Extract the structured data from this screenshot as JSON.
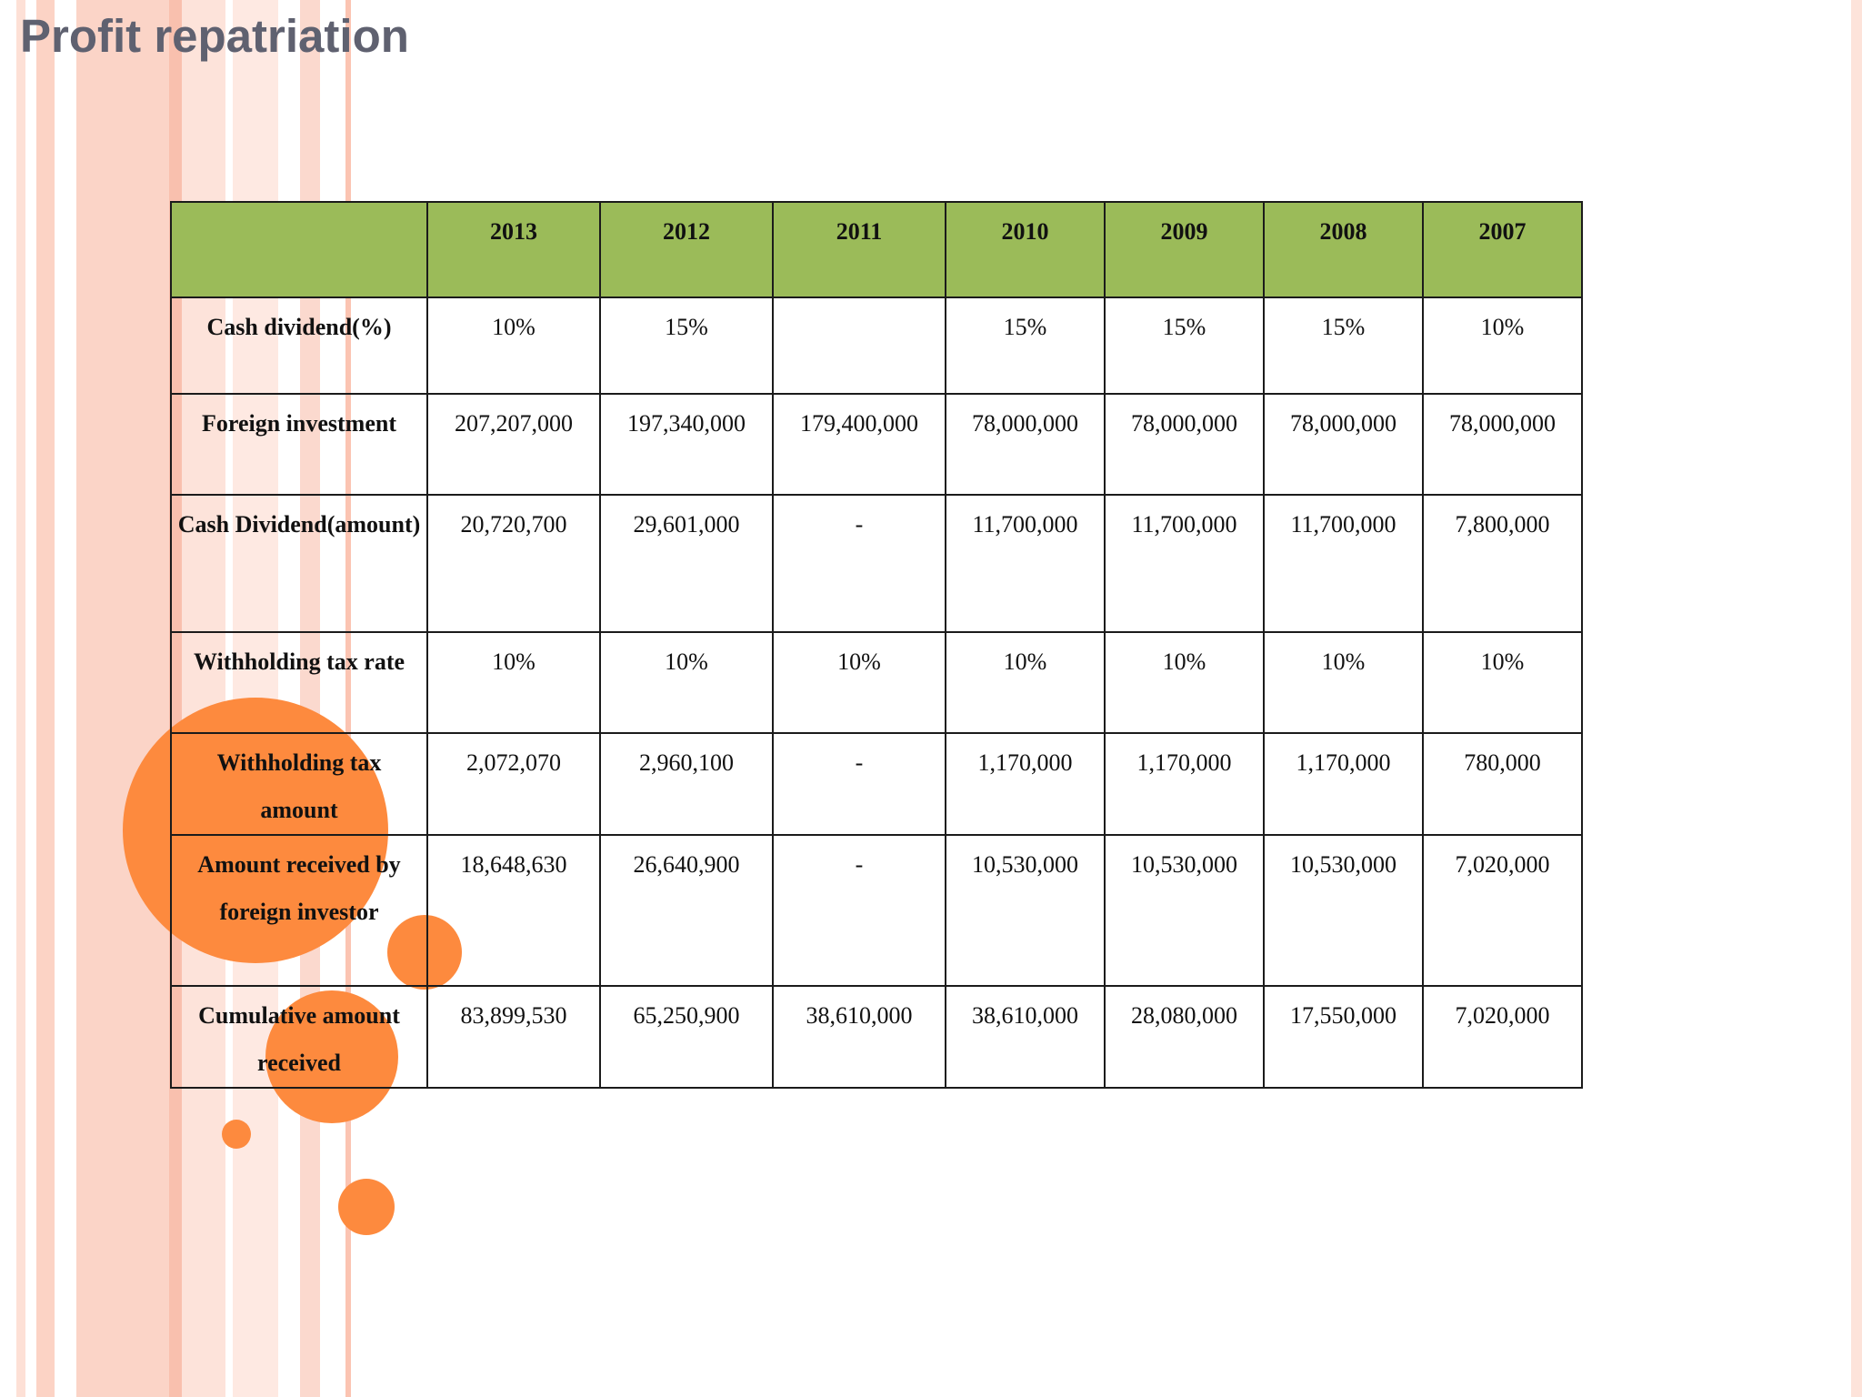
{
  "slide": {
    "title": "Profit repatriation",
    "colors": {
      "accent_orange": "#fd8a3e",
      "header_green": "#9bbb59",
      "title_gray": "#5f6170"
    }
  },
  "table": {
    "corner": "",
    "columns": [
      "2013",
      "2012",
      "2011",
      "2010",
      "2009",
      "2008",
      "2007"
    ],
    "rows": [
      {
        "label": "Cash dividend(%)",
        "values": [
          "10%",
          "15%",
          "",
          "15%",
          "15%",
          "15%",
          "10%"
        ]
      },
      {
        "label": "Foreign investment",
        "values": [
          "207,207,000",
          "197,340,000",
          "179,400,000",
          "78,000,000",
          "78,000,000",
          "78,000,000",
          "78,000,000"
        ]
      },
      {
        "label": "Cash Dividend(amount)",
        "values": [
          "20,720,700",
          "29,601,000",
          "-",
          "11,700,000",
          "11,700,000",
          "11,700,000",
          "7,800,000"
        ]
      },
      {
        "label": "Withholding tax rate",
        "values": [
          "10%",
          "10%",
          "10%",
          "10%",
          "10%",
          "10%",
          "10%"
        ]
      },
      {
        "label": "Withholding tax amount",
        "values": [
          "2,072,070",
          "2,960,100",
          "-",
          "1,170,000",
          "1,170,000",
          "1,170,000",
          "780,000"
        ]
      },
      {
        "label": "Amount received by foreign investor",
        "values": [
          "18,648,630",
          "26,640,900",
          "-",
          "10,530,000",
          "10,530,000",
          "10,530,000",
          "7,020,000"
        ]
      },
      {
        "label": "Cumulative amount received",
        "values": [
          "83,899,530",
          "65,250,900",
          "38,610,000",
          "38,610,000",
          "28,080,000",
          "17,550,000",
          "7,020,000"
        ]
      }
    ]
  }
}
